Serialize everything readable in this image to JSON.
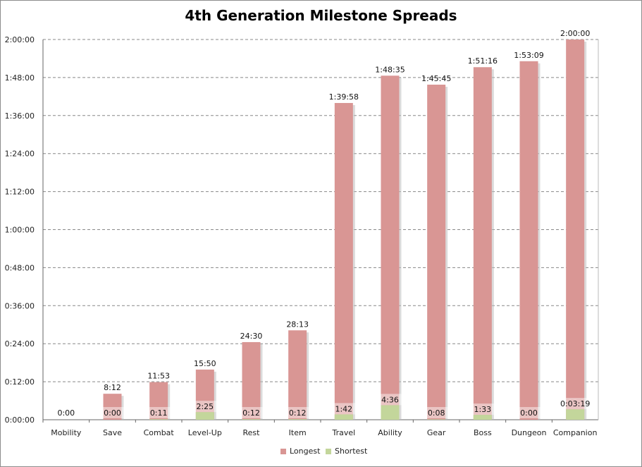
{
  "chart_data": {
    "type": "bar",
    "stacked": true,
    "title": "4th Generation Milestone Spreads",
    "xlabel": "",
    "ylabel": "",
    "categories": [
      "Mobility",
      "Save",
      "Combat",
      "Level-Up",
      "Rest",
      "Item",
      "Travel",
      "Ability",
      "Gear",
      "Boss",
      "Dungeon",
      "Companion"
    ],
    "y_unit": "seconds",
    "ylim": [
      0,
      7200
    ],
    "y_ticks": [
      {
        "value": 0,
        "label": "0:00:00"
      },
      {
        "value": 720,
        "label": "0:12:00"
      },
      {
        "value": 1440,
        "label": "0:24:00"
      },
      {
        "value": 2160,
        "label": "0:36:00"
      },
      {
        "value": 2880,
        "label": "0:48:00"
      },
      {
        "value": 3600,
        "label": "1:00:00"
      },
      {
        "value": 4320,
        "label": "1:12:00"
      },
      {
        "value": 5040,
        "label": "1:24:00"
      },
      {
        "value": 5760,
        "label": "1:36:00"
      },
      {
        "value": 6480,
        "label": "1:48:00"
      },
      {
        "value": 7200,
        "label": "2:00:00"
      }
    ],
    "grid": true,
    "legend_position": "bottom",
    "series": [
      {
        "name": "Longest",
        "color": "#d99694",
        "values": [
          0,
          492,
          713,
          950,
          1470,
          1693,
          5998,
          6515,
          6345,
          6676,
          6789,
          7200
        ],
        "labels": [
          "0:00",
          "8:12",
          "11:53",
          "15:50",
          "24:30",
          "28:13",
          "1:39:58",
          "1:48:35",
          "1:45:45",
          "1:51:16",
          "1:53:09",
          "2:00:00"
        ]
      },
      {
        "name": "Shortest",
        "color": "#c3d69b",
        "values": [
          0,
          0,
          11,
          145,
          12,
          12,
          102,
          276,
          8,
          93,
          0,
          199
        ],
        "labels": [
          "",
          "0:00",
          "0:11",
          "2:25",
          "0:12",
          "0:12",
          "1:42",
          "4:36",
          "0:08",
          "1:33",
          "0:00",
          "0:03:19"
        ]
      }
    ]
  }
}
